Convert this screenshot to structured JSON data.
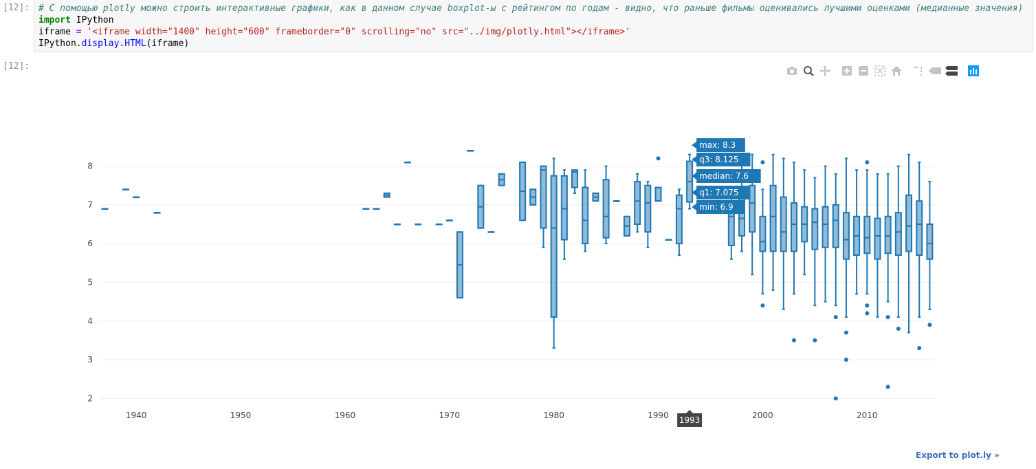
{
  "cell": {
    "in_prompt": "[12]:",
    "out_prompt": "[12]:",
    "code_comment": "# С помощью plotly можно строить интерактивные графики, как в данном случае boxplot-ы с рейтингом по годам - видно, что раньше фильмы оценивались лучшими оценками (медианные значения)",
    "code_import_kw": "import",
    "code_import_mod": " IPython",
    "code_iframe_var": "iframe ",
    "code_eq": "=",
    "code_iframe_str": " '<iframe width=\"1400\" height=\"600\" frameborder=\"0\" scrolling=\"no\" src=\"../img/plotly.html\"></iframe>'",
    "code_l3_a": "IPython.",
    "code_l3_b": "display",
    "code_l3_c": ".",
    "code_l3_d": "HTML",
    "code_l3_e": "(iframe)"
  },
  "modebar": {
    "buttons": [
      "camera-icon",
      "zoom-icon",
      "pan-icon",
      "zoom-in-icon",
      "zoom-out-icon",
      "autoscale-icon",
      "reset-axes-icon",
      "spike-lines-icon",
      "hover-closest-icon",
      "hover-compare-icon",
      "plotly-logo-icon"
    ]
  },
  "export_label": "Export to plot.ly »",
  "colors": {
    "box_line": "#1f77b4",
    "box_fill": "rgba(31,119,180,0.5)",
    "grid": "#eeeeee",
    "tick_text": "#444444"
  },
  "chart_data": {
    "type": "box",
    "title": "",
    "xlabel": "",
    "ylabel": "",
    "x_ticks": [
      1940,
      1950,
      1960,
      1970,
      1980,
      1990,
      2000,
      2010
    ],
    "y_ticks": [
      2,
      3,
      4,
      5,
      6,
      7,
      8
    ],
    "xlim": [
      1936.5,
      2016.5
    ],
    "ylim": [
      1.9,
      8.65
    ],
    "grid": true,
    "boxes": [
      {
        "year": 1937,
        "min": 6.9,
        "q1": 6.9,
        "median": 6.9,
        "q3": 6.9,
        "max": 6.9,
        "outliers": []
      },
      {
        "year": 1939,
        "min": 7.4,
        "q1": 7.4,
        "median": 7.4,
        "q3": 7.4,
        "max": 7.4,
        "outliers": []
      },
      {
        "year": 1940,
        "min": 7.2,
        "q1": 7.2,
        "median": 7.2,
        "q3": 7.2,
        "max": 7.2,
        "outliers": []
      },
      {
        "year": 1942,
        "min": 6.8,
        "q1": 6.8,
        "median": 6.8,
        "q3": 6.8,
        "max": 6.8,
        "outliers": []
      },
      {
        "year": 1962,
        "min": 6.9,
        "q1": 6.9,
        "median": 6.9,
        "q3": 6.9,
        "max": 6.9,
        "outliers": []
      },
      {
        "year": 1963,
        "min": 6.9,
        "q1": 6.9,
        "median": 6.9,
        "q3": 6.9,
        "max": 6.9,
        "outliers": []
      },
      {
        "year": 1964,
        "min": 7.2,
        "q1": 7.2,
        "median": 7.25,
        "q3": 7.3,
        "max": 7.3,
        "outliers": []
      },
      {
        "year": 1965,
        "min": 6.5,
        "q1": 6.5,
        "median": 6.5,
        "q3": 6.5,
        "max": 6.5,
        "outliers": []
      },
      {
        "year": 1966,
        "min": 8.1,
        "q1": 8.1,
        "median": 8.1,
        "q3": 8.1,
        "max": 8.1,
        "outliers": []
      },
      {
        "year": 1967,
        "min": 6.5,
        "q1": 6.5,
        "median": 6.5,
        "q3": 6.5,
        "max": 6.5,
        "outliers": []
      },
      {
        "year": 1969,
        "min": 6.5,
        "q1": 6.5,
        "median": 6.5,
        "q3": 6.5,
        "max": 6.5,
        "outliers": []
      },
      {
        "year": 1970,
        "min": 6.6,
        "q1": 6.6,
        "median": 6.6,
        "q3": 6.6,
        "max": 6.6,
        "outliers": []
      },
      {
        "year": 1971,
        "min": 4.6,
        "q1": 4.6,
        "median": 5.45,
        "q3": 6.3,
        "max": 6.3,
        "outliers": []
      },
      {
        "year": 1972,
        "min": 8.4,
        "q1": 8.4,
        "median": 8.4,
        "q3": 8.4,
        "max": 8.4,
        "outliers": []
      },
      {
        "year": 1973,
        "min": 6.4,
        "q1": 6.4,
        "median": 6.95,
        "q3": 7.5,
        "max": 7.5,
        "outliers": []
      },
      {
        "year": 1974,
        "min": 6.3,
        "q1": 6.3,
        "median": 6.3,
        "q3": 6.3,
        "max": 6.3,
        "outliers": []
      },
      {
        "year": 1975,
        "min": 7.5,
        "q1": 7.5,
        "median": 7.65,
        "q3": 7.8,
        "max": 7.8,
        "outliers": []
      },
      {
        "year": 1977,
        "min": 6.6,
        "q1": 6.6,
        "median": 7.35,
        "q3": 8.1,
        "max": 8.1,
        "outliers": []
      },
      {
        "year": 1978,
        "min": 7.0,
        "q1": 7.0,
        "median": 7.2,
        "q3": 7.4,
        "max": 7.4,
        "outliers": []
      },
      {
        "year": 1979,
        "min": 5.9,
        "q1": 6.4,
        "median": 7.9,
        "q3": 8.0,
        "max": 8.0,
        "outliers": []
      },
      {
        "year": 1980,
        "min": 3.3,
        "q1": 4.1,
        "median": 6.4,
        "q3": 7.75,
        "max": 8.2,
        "outliers": []
      },
      {
        "year": 1981,
        "min": 5.6,
        "q1": 6.1,
        "median": 6.9,
        "q3": 7.75,
        "max": 7.9,
        "outliers": []
      },
      {
        "year": 1982,
        "min": 7.3,
        "q1": 7.45,
        "median": 7.85,
        "q3": 7.9,
        "max": 7.9,
        "outliers": []
      },
      {
        "year": 1983,
        "min": 5.8,
        "q1": 6.0,
        "median": 6.6,
        "q3": 7.45,
        "max": 7.9,
        "outliers": []
      },
      {
        "year": 1984,
        "min": 7.1,
        "q1": 7.1,
        "median": 7.2,
        "q3": 7.3,
        "max": 7.3,
        "outliers": []
      },
      {
        "year": 1985,
        "min": 6.0,
        "q1": 6.15,
        "median": 6.7,
        "q3": 7.65,
        "max": 8.0,
        "outliers": []
      },
      {
        "year": 1986,
        "min": 7.1,
        "q1": 7.1,
        "median": 7.1,
        "q3": 7.1,
        "max": 7.1,
        "outliers": []
      },
      {
        "year": 1987,
        "min": 6.2,
        "q1": 6.2,
        "median": 6.45,
        "q3": 6.7,
        "max": 6.7,
        "outliers": []
      },
      {
        "year": 1988,
        "min": 6.3,
        "q1": 6.5,
        "median": 7.1,
        "q3": 7.6,
        "max": 7.8,
        "outliers": []
      },
      {
        "year": 1989,
        "min": 5.9,
        "q1": 6.3,
        "median": 7.05,
        "q3": 7.5,
        "max": 7.6,
        "outliers": []
      },
      {
        "year": 1990,
        "min": 7.1,
        "q1": 7.1,
        "median": 7.1,
        "q3": 7.45,
        "max": 7.45,
        "outliers": [
          8.2
        ]
      },
      {
        "year": 1991,
        "min": 6.1,
        "q1": 6.1,
        "median": 6.1,
        "q3": 6.1,
        "max": 6.1,
        "outliers": []
      },
      {
        "year": 1992,
        "min": 5.7,
        "q1": 6.0,
        "median": 6.9,
        "q3": 7.25,
        "max": 7.4,
        "outliers": []
      },
      {
        "year": 1993,
        "min": 6.9,
        "q1": 7.075,
        "median": 7.6,
        "q3": 8.125,
        "max": 8.3,
        "outliers": []
      },
      {
        "year": 1997,
        "min": 5.6,
        "q1": 5.95,
        "median": 6.7,
        "q3": 7.05,
        "max": 7.2,
        "outliers": []
      },
      {
        "year": 1998,
        "min": 5.8,
        "q1": 6.2,
        "median": 6.65,
        "q3": 7.3,
        "max": 8.2,
        "outliers": []
      },
      {
        "year": 1999,
        "min": 5.2,
        "q1": 6.3,
        "median": 7.05,
        "q3": 7.5,
        "max": 8.3,
        "outliers": []
      },
      {
        "year": 2000,
        "min": 4.7,
        "q1": 5.8,
        "median": 6.05,
        "q3": 6.7,
        "max": 7.4,
        "outliers": [
          8.1,
          4.4
        ]
      },
      {
        "year": 2001,
        "min": 4.8,
        "q1": 5.8,
        "median": 6.7,
        "q3": 7.5,
        "max": 8.3,
        "outliers": []
      },
      {
        "year": 2002,
        "min": 4.3,
        "q1": 5.8,
        "median": 6.3,
        "q3": 7.2,
        "max": 8.2,
        "outliers": []
      },
      {
        "year": 2003,
        "min": 4.7,
        "q1": 5.8,
        "median": 6.5,
        "q3": 7.05,
        "max": 8.1,
        "outliers": [
          3.5
        ]
      },
      {
        "year": 2004,
        "min": 5.2,
        "q1": 6.05,
        "median": 6.5,
        "q3": 6.95,
        "max": 7.9,
        "outliers": []
      },
      {
        "year": 2005,
        "min": 4.4,
        "q1": 5.85,
        "median": 6.55,
        "q3": 6.9,
        "max": 7.7,
        "outliers": [
          3.5
        ]
      },
      {
        "year": 2006,
        "min": 4.5,
        "q1": 5.9,
        "median": 6.5,
        "q3": 6.95,
        "max": 8.0,
        "outliers": []
      },
      {
        "year": 2007,
        "min": 4.4,
        "q1": 5.9,
        "median": 6.6,
        "q3": 7.0,
        "max": 7.8,
        "outliers": [
          4.1,
          2.0
        ]
      },
      {
        "year": 2008,
        "min": 4.1,
        "q1": 5.6,
        "median": 6.1,
        "q3": 6.8,
        "max": 8.2,
        "outliers": [
          3.7,
          3.0
        ]
      },
      {
        "year": 2009,
        "min": 4.7,
        "q1": 5.7,
        "median": 6.2,
        "q3": 6.7,
        "max": 7.9,
        "outliers": []
      },
      {
        "year": 2010,
        "min": 4.7,
        "q1": 5.75,
        "median": 6.15,
        "q3": 6.7,
        "max": 7.9,
        "outliers": [
          8.1,
          4.4,
          4.2
        ]
      },
      {
        "year": 2011,
        "min": 4.1,
        "q1": 5.6,
        "median": 6.2,
        "q3": 6.65,
        "max": 7.8,
        "outliers": []
      },
      {
        "year": 2012,
        "min": 4.5,
        "q1": 5.75,
        "median": 6.2,
        "q3": 6.7,
        "max": 7.8,
        "outliers": [
          4.1,
          2.3
        ]
      },
      {
        "year": 2013,
        "min": 4.1,
        "q1": 5.7,
        "median": 6.3,
        "q3": 6.8,
        "max": 8.0,
        "outliers": [
          3.8
        ]
      },
      {
        "year": 2014,
        "min": 3.7,
        "q1": 5.8,
        "median": 6.45,
        "q3": 7.25,
        "max": 8.3,
        "outliers": []
      },
      {
        "year": 2015,
        "min": 4.1,
        "q1": 5.7,
        "median": 6.5,
        "q3": 7.1,
        "max": 8.1,
        "outliers": [
          3.3
        ]
      },
      {
        "year": 2016,
        "min": 4.3,
        "q1": 5.6,
        "median": 6.0,
        "q3": 6.5,
        "max": 7.6,
        "outliers": [
          3.9
        ]
      }
    ],
    "hover": {
      "year": 1993,
      "axis_label": "1993",
      "labels": [
        "max: 8.3",
        "q3: 8.125",
        "median: 7.6",
        "q1: 7.075",
        "min: 6.9"
      ]
    }
  }
}
